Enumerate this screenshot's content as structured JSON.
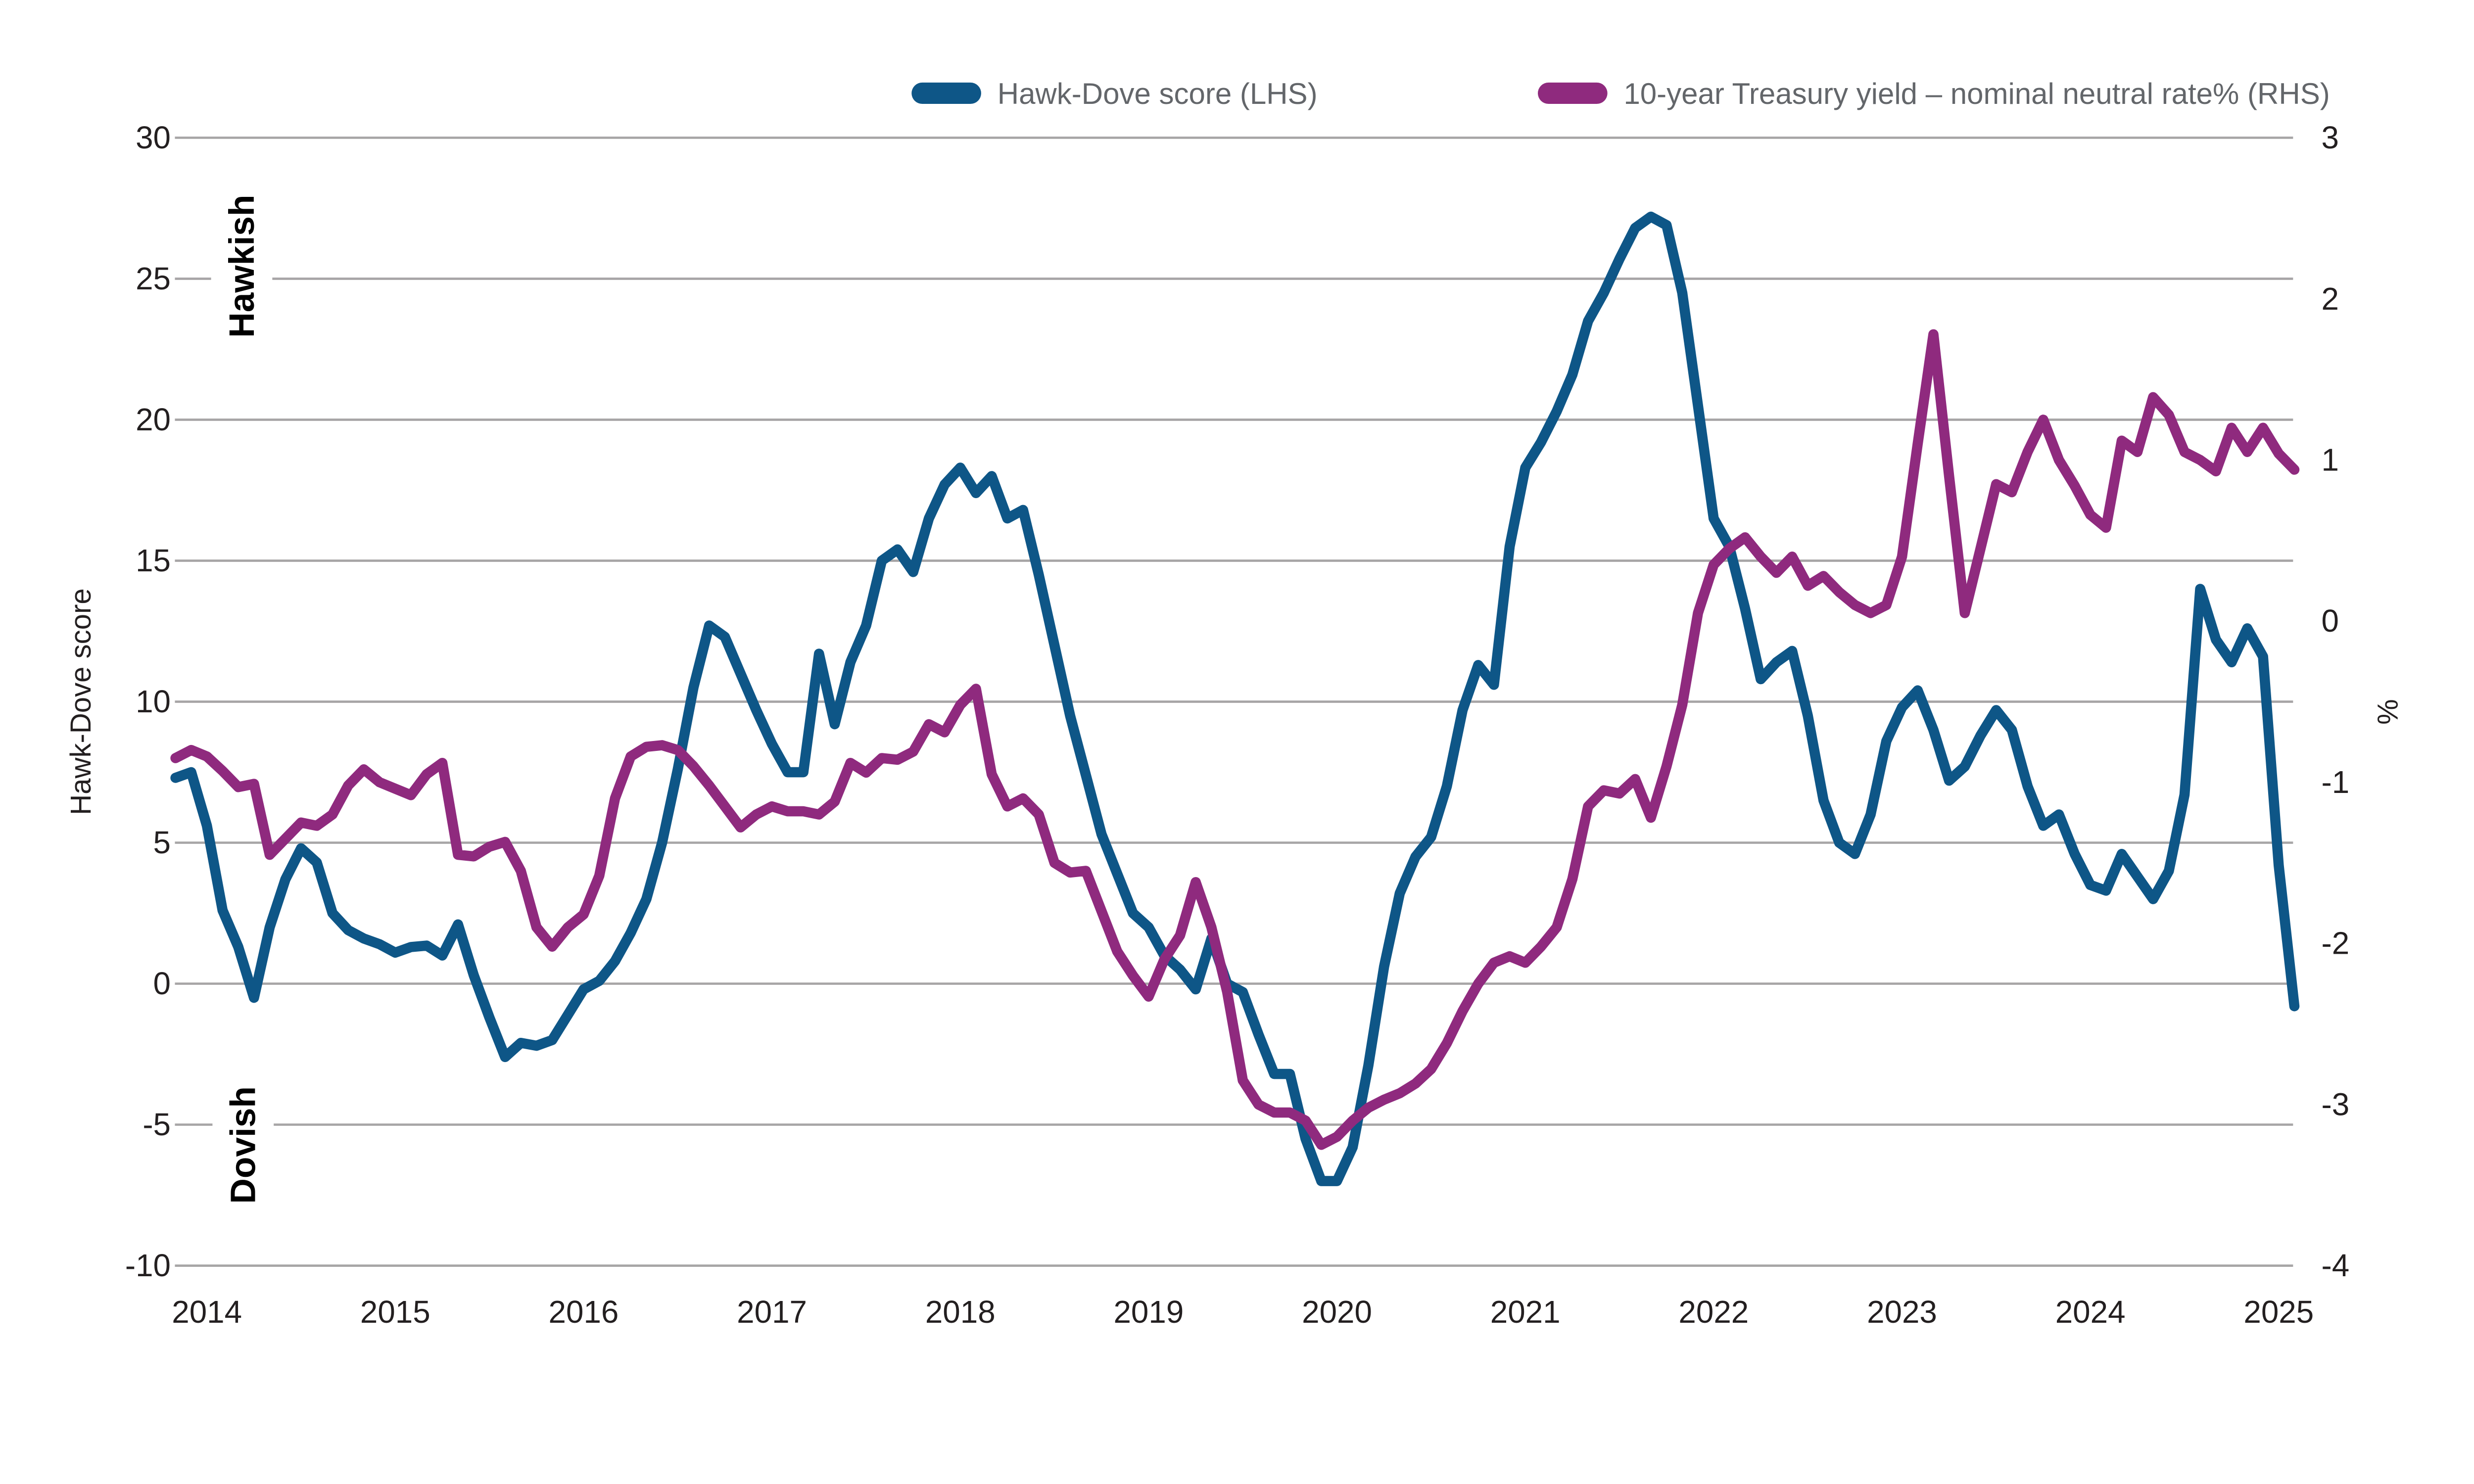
{
  "chart_data": {
    "type": "line",
    "title": "",
    "x_axis": {
      "frequency": "monthly",
      "start": "2013-11",
      "end": "2025-02",
      "tick_labels": [
        "2014",
        "2015",
        "2016",
        "2017",
        "2018",
        "2019",
        "2020",
        "2021",
        "2022",
        "2023",
        "2024",
        "2025"
      ]
    },
    "left_axis": {
      "title": "Hawk-Dove score",
      "min": -10,
      "max": 30,
      "ticks": [
        30,
        25,
        20,
        15,
        10,
        5,
        0,
        -5,
        -10
      ]
    },
    "right_axis": {
      "title": "%",
      "min": -4,
      "max": 3,
      "ticks": [
        3,
        2,
        1,
        0,
        -1,
        -2,
        -3,
        -4
      ]
    },
    "grid": "horizontal-left-ticks",
    "legend_position": "top-center",
    "annotations": [
      {
        "text": "Hawkish",
        "position": "upper-left",
        "rotated": true
      },
      {
        "text": "Dovish",
        "position": "lower-left",
        "rotated": true
      }
    ],
    "series": [
      {
        "name": "Hawk-Dove score (LHS)",
        "axis": "left",
        "color": "#0E5687",
        "values": [
          7.3,
          7.5,
          5.6,
          2.6,
          1.3,
          -0.5,
          2.0,
          3.7,
          4.8,
          4.3,
          2.5,
          1.9,
          1.6,
          1.4,
          1.1,
          1.3,
          1.35,
          1.0,
          2.1,
          0.3,
          -1.2,
          -2.6,
          -2.1,
          -2.2,
          -2.0,
          -1.1,
          -0.2,
          0.1,
          0.8,
          1.8,
          3.0,
          5.0,
          7.6,
          10.5,
          12.7,
          12.3,
          11.0,
          9.7,
          8.5,
          7.5,
          7.5,
          11.7,
          9.2,
          11.4,
          12.7,
          15.0,
          15.4,
          14.6,
          16.5,
          17.7,
          18.3,
          17.4,
          18.0,
          16.5,
          16.8,
          14.5,
          12.0,
          9.5,
          7.4,
          5.3,
          3.9,
          2.5,
          2.0,
          1.0,
          0.5,
          -0.2,
          1.6,
          0.0,
          -0.3,
          -1.8,
          -3.2,
          -3.2,
          -5.5,
          -7.0,
          -7.0,
          -5.8,
          -2.9,
          0.6,
          3.2,
          4.5,
          5.2,
          7.0,
          9.7,
          11.3,
          10.6,
          15.5,
          18.3,
          19.2,
          20.3,
          21.6,
          23.5,
          24.5,
          25.7,
          26.8,
          27.2,
          26.9,
          24.5,
          20.5,
          16.5,
          15.5,
          13.3,
          10.8,
          11.4,
          11.8,
          9.5,
          6.5,
          5.0,
          4.6,
          6.0,
          8.6,
          9.8,
          10.4,
          9.0,
          7.2,
          7.7,
          8.8,
          9.7,
          9.0,
          7.0,
          5.6,
          6.0,
          4.6,
          3.5,
          3.3,
          4.6,
          3.8,
          3.0,
          4.0,
          6.7,
          14.0,
          12.2,
          11.4,
          12.6,
          11.6,
          4.2,
          -0.8
        ]
      },
      {
        "name": "10-year Treasury yield – nominal neutral rate% (RHS)",
        "axis": "right",
        "color": "#8F2A7E",
        "values": [
          -0.85,
          -0.8,
          -0.84,
          -0.93,
          -1.03,
          -1.01,
          -1.45,
          -1.35,
          -1.25,
          -1.27,
          -1.2,
          -1.02,
          -0.92,
          -1.0,
          -1.04,
          -1.08,
          -0.95,
          -0.88,
          -1.45,
          -1.46,
          -1.4,
          -1.37,
          -1.55,
          -1.9,
          -2.02,
          -1.9,
          -1.82,
          -1.58,
          -1.1,
          -0.84,
          -0.78,
          -0.77,
          -0.8,
          -0.9,
          -1.02,
          -1.15,
          -1.28,
          -1.2,
          -1.15,
          -1.18,
          -1.18,
          -1.2,
          -1.12,
          -0.88,
          -0.94,
          -0.85,
          -0.86,
          -0.81,
          -0.64,
          -0.69,
          -0.52,
          -0.42,
          -0.95,
          -1.15,
          -1.1,
          -1.2,
          -1.5,
          -1.56,
          -1.55,
          -1.8,
          -2.05,
          -2.2,
          -2.33,
          -2.1,
          -1.95,
          -1.62,
          -1.9,
          -2.3,
          -2.85,
          -3.0,
          -3.05,
          -3.05,
          -3.1,
          -3.25,
          -3.2,
          -3.1,
          -3.02,
          -2.97,
          -2.93,
          -2.87,
          -2.78,
          -2.62,
          -2.42,
          -2.25,
          -2.12,
          -2.08,
          -2.12,
          -2.02,
          -1.9,
          -1.6,
          -1.15,
          -1.05,
          -1.07,
          -0.98,
          -1.22,
          -0.9,
          -0.52,
          0.05,
          0.35,
          0.45,
          0.52,
          0.4,
          0.3,
          0.4,
          0.22,
          0.28,
          0.18,
          0.1,
          0.05,
          0.1,
          0.4,
          1.1,
          1.78,
          0.9,
          0.05,
          0.45,
          0.85,
          0.8,
          1.05,
          1.25,
          1.0,
          0.84,
          0.66,
          0.58,
          1.12,
          1.05,
          1.39,
          1.28,
          1.05,
          1.0,
          0.93,
          1.2,
          1.05,
          1.2,
          1.04,
          0.94
        ]
      }
    ]
  },
  "colors": {
    "background": "#ffffff",
    "gridline": "#A7A5A6",
    "axis_text": "#231F20",
    "legend_text": "#63666A",
    "series_blue": "#0E5687",
    "series_magenta": "#8F2A7E"
  }
}
